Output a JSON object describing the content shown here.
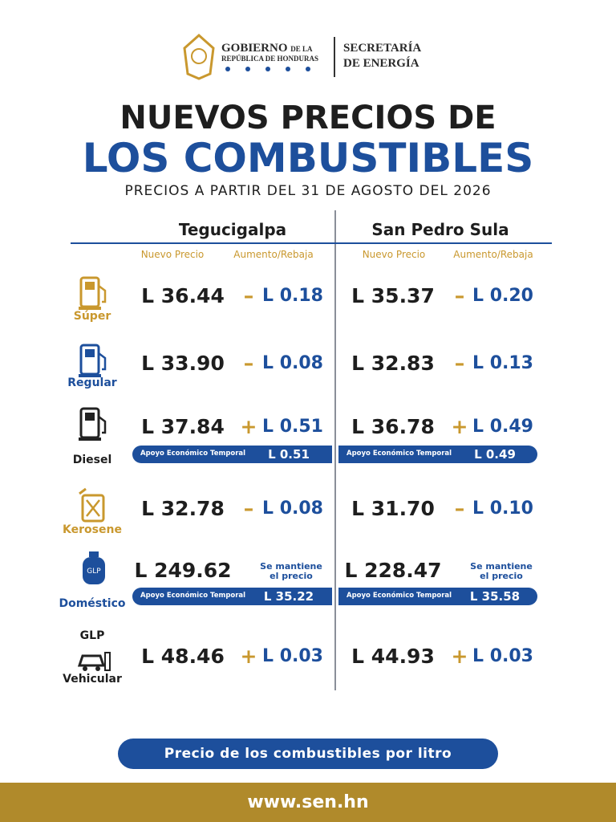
{
  "header": {
    "gobierno": "GOBIERNO",
    "de_la": "DE LA",
    "republica": "REPÚBLICA DE HONDURAS",
    "secretaria": "SECRETARÍA",
    "energia": "DE ENERGÍA"
  },
  "title": {
    "line1": "NUEVOS PRECIOS DE",
    "line2": "LOS COMBUSTIBLES",
    "subtitle": "PRECIOS A PARTIR DEL 31 DE AGOSTO DEL 2026"
  },
  "table": {
    "cities": [
      "Tegucigalpa",
      "San Pedro Sula"
    ],
    "column_headers": [
      "Nuevo Precio",
      "Aumento/Rebaja",
      "Nuevo Precio",
      "Aumento/Rebaja"
    ],
    "rows": [
      {
        "label": "Súper",
        "cities": [
          {
            "price": "L 36.44",
            "sign": "–",
            "change": "L 0.18"
          },
          {
            "price": "L 35.37",
            "sign": "–",
            "change": "L 0.20"
          }
        ]
      },
      {
        "label": "Regular",
        "cities": [
          {
            "price": "L 33.90",
            "sign": "–",
            "change": "L 0.08"
          },
          {
            "price": "L 32.83",
            "sign": "–",
            "change": "L 0.13"
          }
        ]
      },
      {
        "label": "Diesel",
        "cities": [
          {
            "price": "L 37.84",
            "sign": "+",
            "change": "L 0.51",
            "support": {
              "label": "Apoyo Económico Temporal",
              "amount": "L 0.51"
            }
          },
          {
            "price": "L 36.78",
            "sign": "+",
            "change": "L 0.49",
            "support": {
              "label": "Apoyo Económico Temporal",
              "amount": "L 0.49"
            }
          }
        ]
      },
      {
        "label": "Kerosene",
        "cities": [
          {
            "price": "L 32.78",
            "sign": "–",
            "change": "L 0.08"
          },
          {
            "price": "L 31.70",
            "sign": "–",
            "change": "L 0.10"
          }
        ]
      },
      {
        "label": "Doméstico",
        "cities": [
          {
            "price": "L 249.62",
            "note": [
              "Se mantiene",
              "el precio"
            ],
            "support": {
              "label": "Apoyo Económico Temporal",
              "amount": "L 35.22"
            }
          },
          {
            "price": "L 228.47",
            "note": [
              "Se mantiene",
              "el precio"
            ],
            "support": {
              "label": "Apoyo Económico Temporal",
              "amount": "L 35.58"
            }
          }
        ]
      },
      {
        "label_top": "GLP",
        "label": "Vehicular",
        "cities": [
          {
            "price": "L 48.46",
            "sign": "+",
            "change": "L 0.03"
          },
          {
            "price": "L 44.93",
            "sign": "+",
            "change": "L 0.03"
          }
        ]
      }
    ]
  },
  "footer": {
    "note": "Precio de los combustibles por litro",
    "website": "www.sen.hn"
  }
}
